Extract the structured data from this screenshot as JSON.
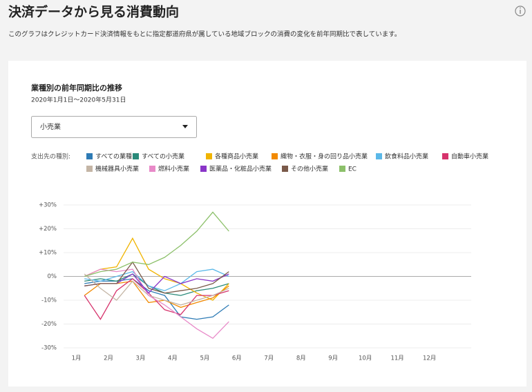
{
  "header": {
    "title": "決済データから見る消費動向",
    "description": "このグラフはクレジットカード決済情報をもとに指定都道府県が属している地域ブロックの消費の変化を前年同期比で表しています。"
  },
  "filter": {
    "selected": "小売業"
  },
  "legend_label": "支出先の種別:",
  "chart_data": {
    "type": "line",
    "title": "業種別の前年同期比の推移",
    "subtitle": "2020年1月1日～2020年5月31日",
    "x": [
      1.25,
      1.75,
      2.25,
      2.75,
      3.25,
      3.75,
      4.25,
      4.75,
      5.25,
      5.75
    ],
    "xlim": [
      0.6,
      13.3
    ],
    "xticks": [
      {
        "value": 1,
        "label": "1月"
      },
      {
        "value": 2,
        "label": "2月"
      },
      {
        "value": 3,
        "label": "3月"
      },
      {
        "value": 4,
        "label": "4月"
      },
      {
        "value": 5,
        "label": "5月"
      },
      {
        "value": 6,
        "label": "6月"
      },
      {
        "value": 7,
        "label": "7月"
      },
      {
        "value": 8,
        "label": "8月"
      },
      {
        "value": 9,
        "label": "9月"
      },
      {
        "value": 10,
        "label": "10月"
      },
      {
        "value": 11,
        "label": "11月"
      },
      {
        "value": 12,
        "label": "12月"
      }
    ],
    "ylim": [
      -30,
      30
    ],
    "yticks": [
      {
        "value": 30,
        "label": "+30%"
      },
      {
        "value": 20,
        "label": "+20%"
      },
      {
        "value": 10,
        "label": "+10%"
      },
      {
        "value": 0,
        "label": "0%"
      },
      {
        "value": -10,
        "label": "-10%"
      },
      {
        "value": -20,
        "label": "-20%"
      },
      {
        "value": -30,
        "label": "-30%"
      }
    ],
    "grid": true,
    "series": [
      {
        "name": "すべての業種",
        "color": "#2e7bb5",
        "values": [
          -3,
          -2,
          -2,
          -1,
          -6,
          -8,
          -17,
          -18,
          -17,
          -12
        ]
      },
      {
        "name": "すべての小売業",
        "color": "#2a8a7a",
        "values": [
          -2,
          -1,
          -2,
          1,
          -4,
          -7,
          -8,
          -6,
          -5,
          -3
        ]
      },
      {
        "name": "各種商品小売業",
        "color": "#f0b400",
        "values": [
          0,
          3,
          4,
          16,
          3,
          -1,
          -3,
          -7,
          -10,
          -3
        ]
      },
      {
        "name": "織物・衣服・身の回り品小売業",
        "color": "#f28a00",
        "values": [
          -8,
          -3,
          -3,
          -2,
          -11,
          -10,
          -13,
          -11,
          -9,
          -4
        ]
      },
      {
        "name": "飲食料品小売業",
        "color": "#5bb8e8",
        "values": [
          -1,
          -2,
          0,
          2,
          -4,
          -6,
          -3,
          2,
          3,
          0
        ]
      },
      {
        "name": "自動車小売業",
        "color": "#d6336c",
        "values": [
          -8,
          -18,
          -6,
          -1,
          -7,
          -14,
          -16,
          -8,
          -8,
          -6
        ]
      },
      {
        "name": "機械器具小売業",
        "color": "#c4b5a5",
        "values": [
          1,
          -5,
          -10,
          -2,
          -8,
          -10,
          -12,
          -10,
          -8,
          -5
        ]
      },
      {
        "name": "燃料小売業",
        "color": "#e88ac8",
        "values": [
          0,
          3,
          2,
          3,
          -8,
          -12,
          -17,
          -22,
          -26,
          -19
        ]
      },
      {
        "name": "医薬品・化粧品小売業",
        "color": "#8a35c8",
        "values": [
          -4,
          -3,
          -3,
          1,
          -7,
          0,
          -3,
          -1,
          -2,
          1
        ]
      },
      {
        "name": "その他小売業",
        "color": "#7a5a4a",
        "values": [
          -4,
          -3,
          -3,
          6,
          -5,
          -7,
          -6,
          -5,
          -3,
          2
        ]
      },
      {
        "name": "EC",
        "color": "#8cc06a",
        "values": [
          0,
          2,
          3,
          6,
          5,
          8,
          13,
          19,
          27,
          19
        ]
      }
    ]
  }
}
